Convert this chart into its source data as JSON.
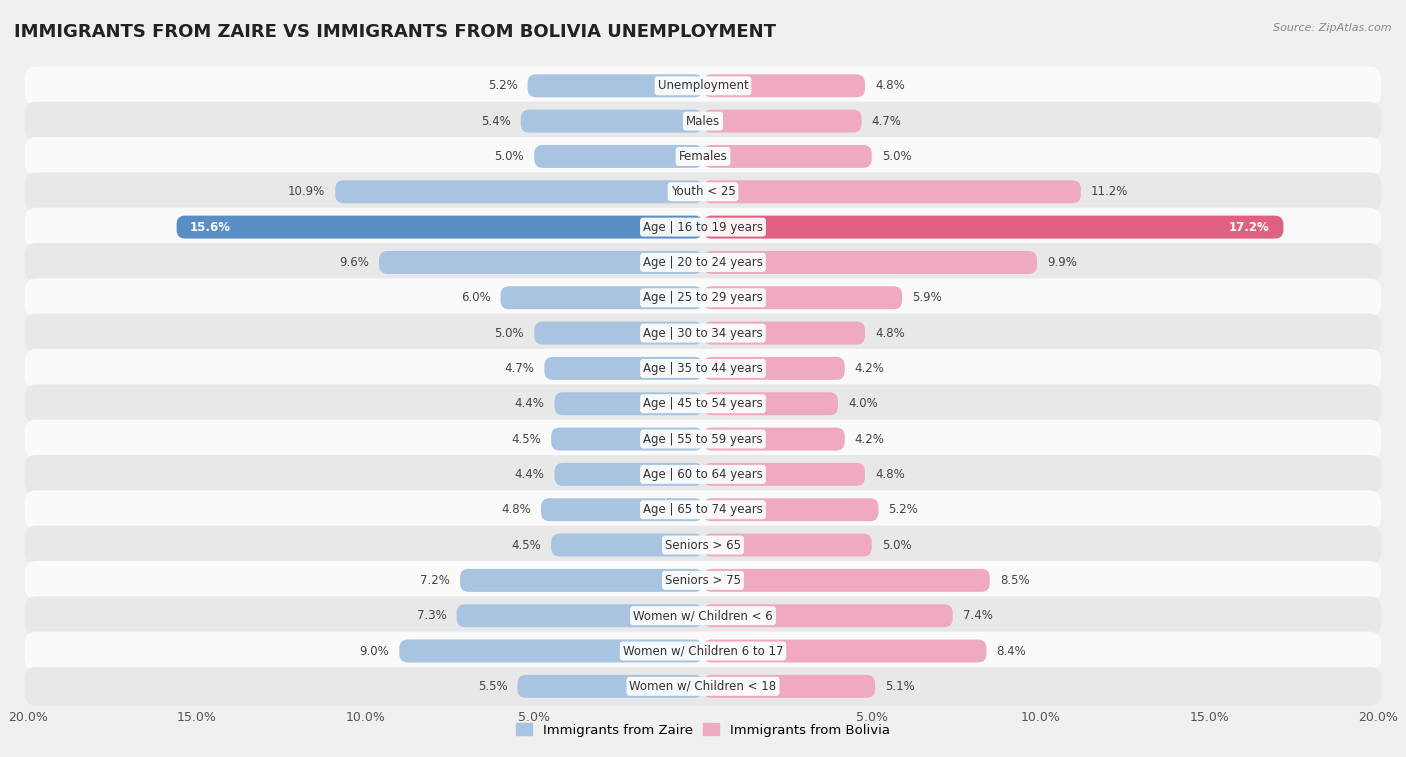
{
  "title": "IMMIGRANTS FROM ZAIRE VS IMMIGRANTS FROM BOLIVIA UNEMPLOYMENT",
  "source": "Source: ZipAtlas.com",
  "categories": [
    "Unemployment",
    "Males",
    "Females",
    "Youth < 25",
    "Age | 16 to 19 years",
    "Age | 20 to 24 years",
    "Age | 25 to 29 years",
    "Age | 30 to 34 years",
    "Age | 35 to 44 years",
    "Age | 45 to 54 years",
    "Age | 55 to 59 years",
    "Age | 60 to 64 years",
    "Age | 65 to 74 years",
    "Seniors > 65",
    "Seniors > 75",
    "Women w/ Children < 6",
    "Women w/ Children 6 to 17",
    "Women w/ Children < 18"
  ],
  "zaire_values": [
    5.2,
    5.4,
    5.0,
    10.9,
    15.6,
    9.6,
    6.0,
    5.0,
    4.7,
    4.4,
    4.5,
    4.4,
    4.8,
    4.5,
    7.2,
    7.3,
    9.0,
    5.5
  ],
  "bolivia_values": [
    4.8,
    4.7,
    5.0,
    11.2,
    17.2,
    9.9,
    5.9,
    4.8,
    4.2,
    4.0,
    4.2,
    4.8,
    5.2,
    5.0,
    8.5,
    7.4,
    8.4,
    5.1
  ],
  "zaire_color": "#a8c4e0",
  "bolivia_color": "#f0aabf",
  "zaire_highlight_color": "#5b8ec4",
  "bolivia_highlight_color": "#e06080",
  "highlight_rows": [
    4
  ],
  "xlim": 20.0,
  "legend_labels": [
    "Immigrants from Zaire",
    "Immigrants from Bolivia"
  ],
  "background_color": "#f0f0f0",
  "row_bg_light": "#fafafa",
  "row_bg_dark": "#e8e8e8",
  "label_fontsize": 8.5,
  "title_fontsize": 13,
  "bar_height": 0.65
}
